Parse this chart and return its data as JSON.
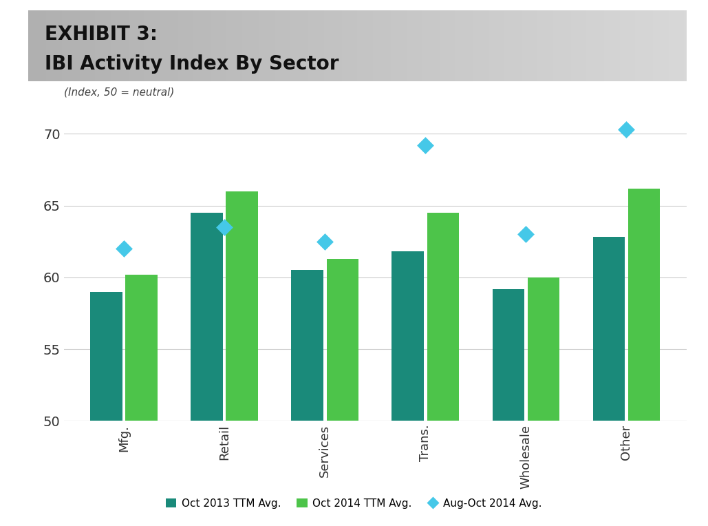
{
  "title_line1": "EXHIBIT 3:",
  "title_line2": "IBI Activity Index By Sector",
  "subtitle": "(Index, 50 = neutral)",
  "categories": [
    "Mfg.",
    "Retail",
    "Services",
    "Trans.",
    "Wholesale",
    "Other"
  ],
  "oct2013": [
    59.0,
    64.5,
    60.5,
    61.8,
    59.2,
    62.8
  ],
  "oct2014": [
    60.2,
    66.0,
    61.3,
    64.5,
    60.0,
    66.2
  ],
  "aug_oct2014": [
    62.0,
    63.5,
    62.5,
    69.2,
    63.0,
    70.3
  ],
  "bar_color_2013": "#1a8a7a",
  "bar_color_2014": "#4dc44a",
  "diamond_color": "#45c8e8",
  "ylim": [
    50,
    72
  ],
  "yticks": [
    50,
    55,
    60,
    65,
    70
  ],
  "legend_labels": [
    "Oct 2013 TTM Avg.",
    "Oct 2014 TTM Avg.",
    "Aug-Oct 2014 Avg."
  ],
  "background_color": "#ffffff",
  "header_bg_left": "#b0b0b0",
  "header_bg_right": "#d8d8d8",
  "title_fontsize": 20,
  "subtitle_fontsize": 11,
  "tick_fontsize": 13,
  "legend_fontsize": 11,
  "bar_bottom": 50
}
